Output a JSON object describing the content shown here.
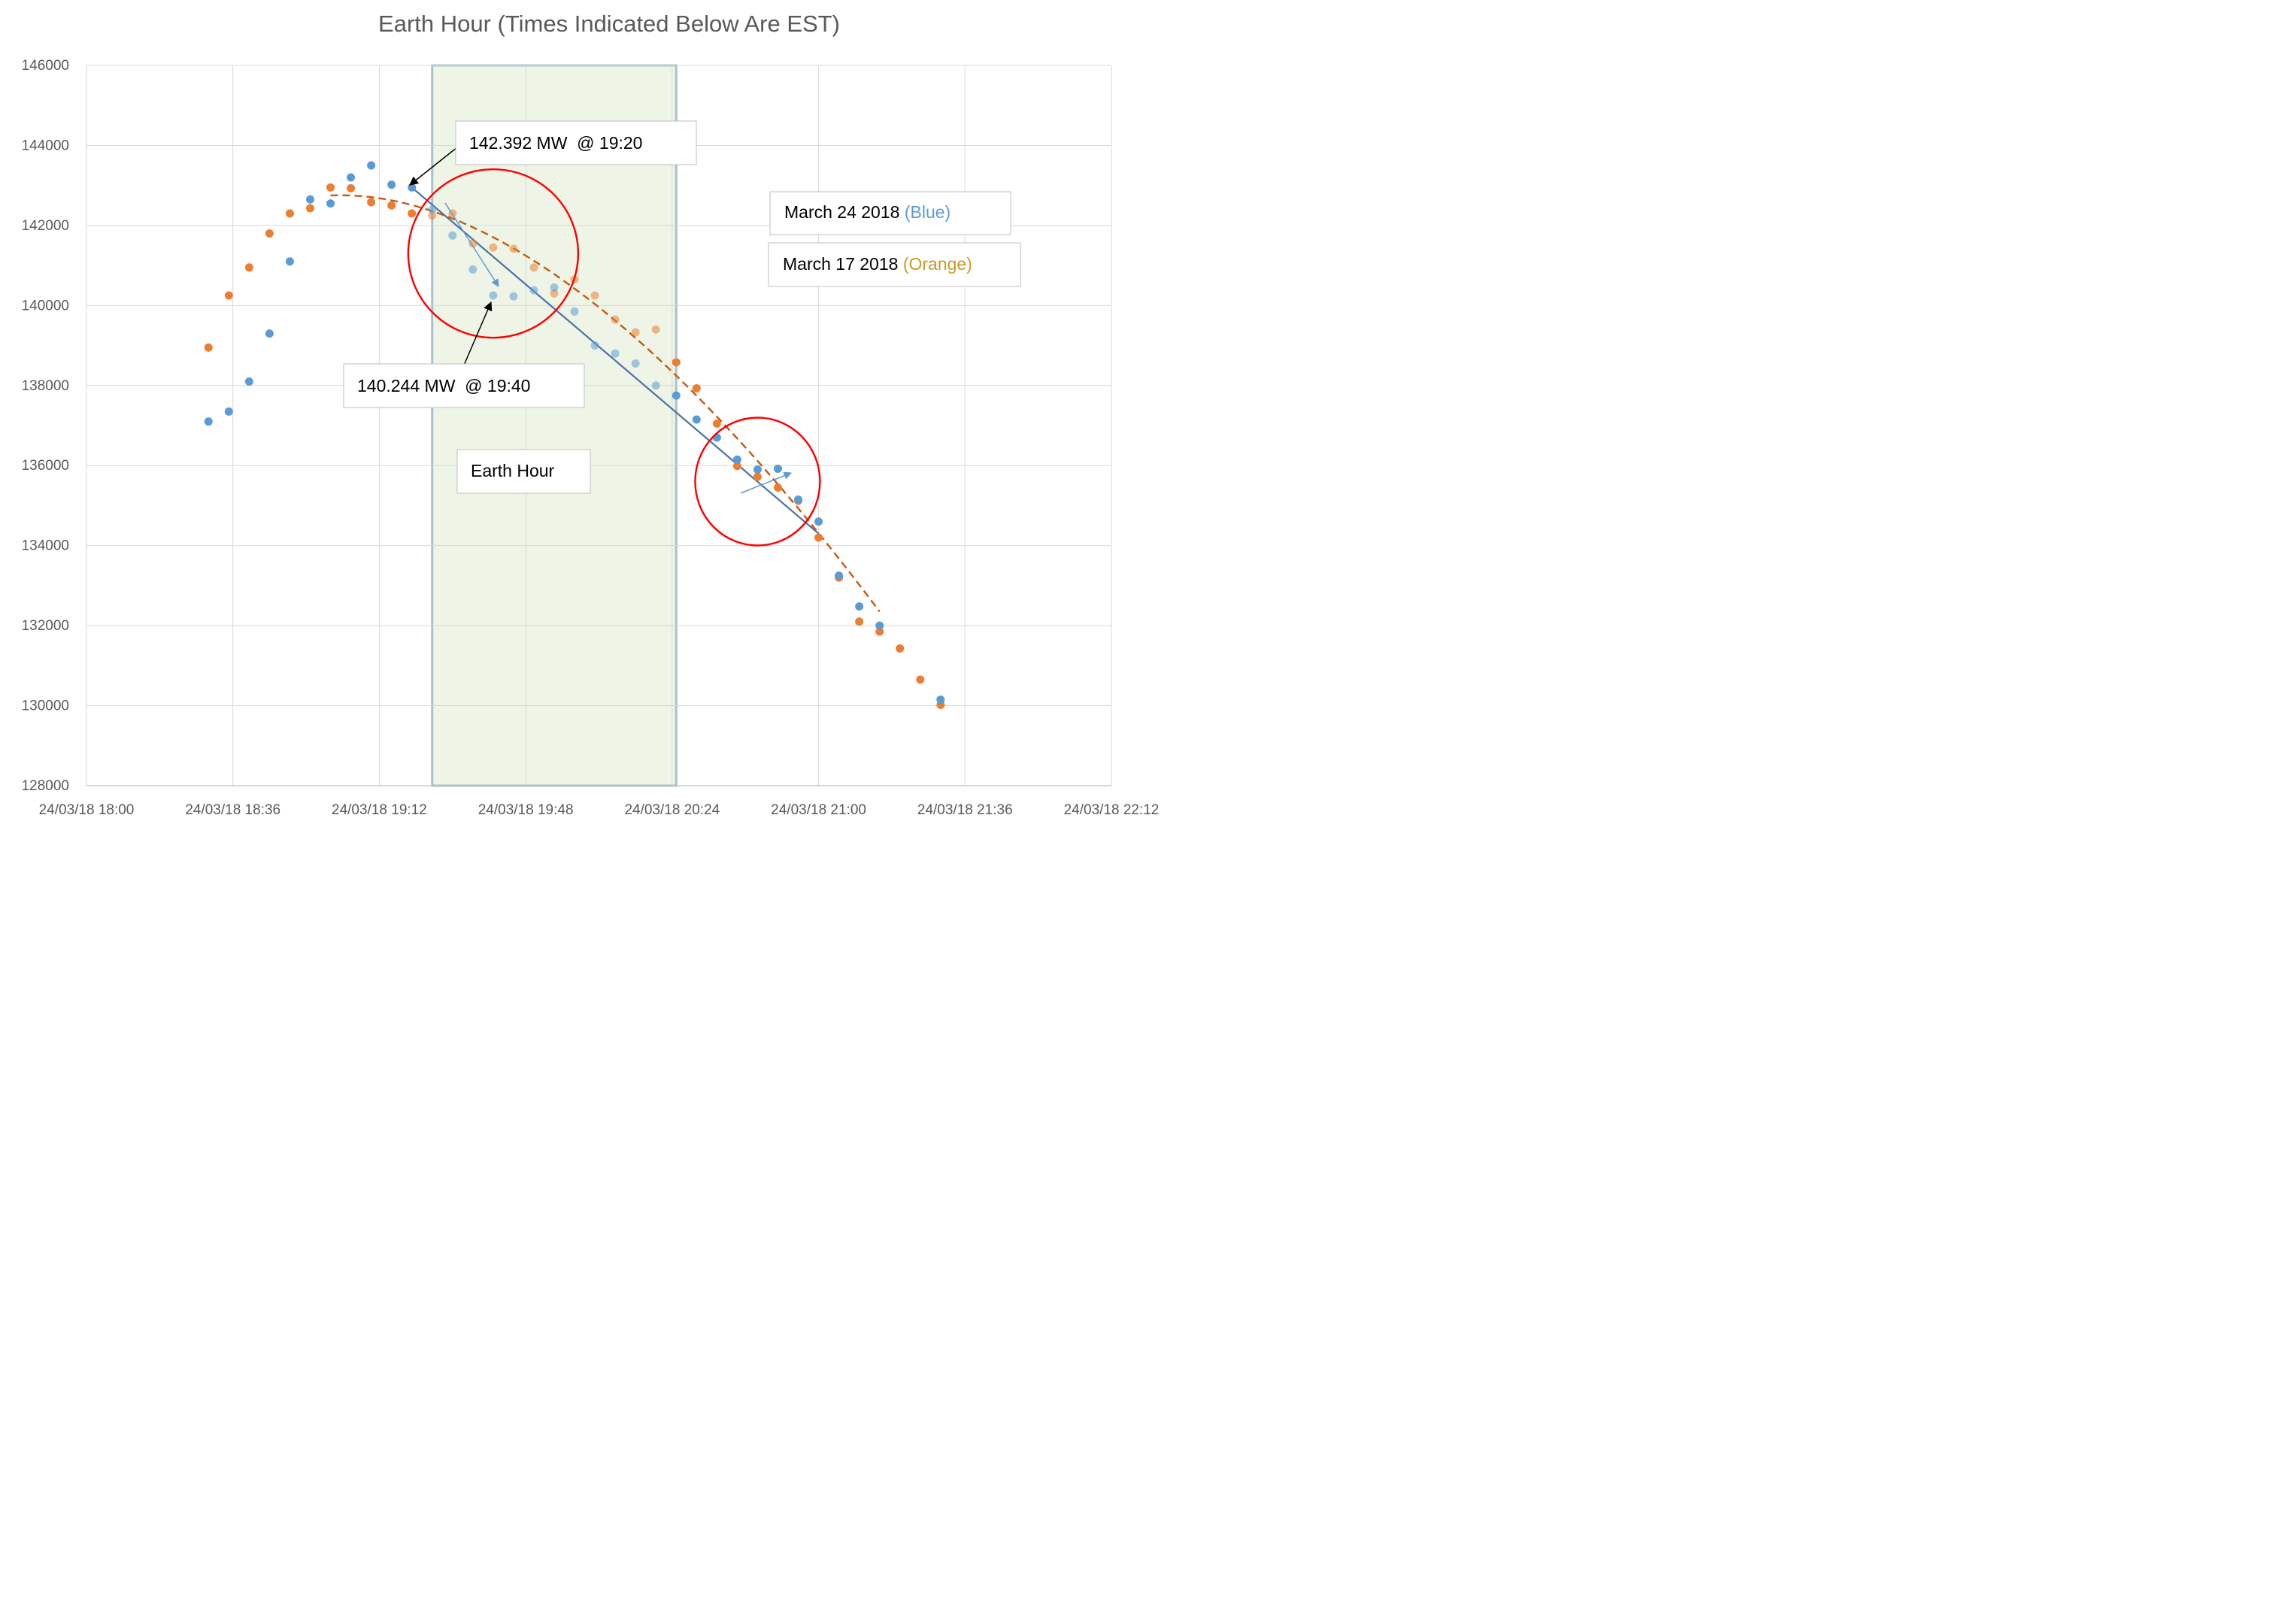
{
  "chart_data": {
    "type": "scatter",
    "title": "Earth Hour (Times Indicated Below Are EST)",
    "xlabel": "",
    "ylabel": "",
    "ylim": [
      128000,
      146000
    ],
    "xlim": [
      "24/03/18 18:00",
      "24/03/18 22:12"
    ],
    "yticks": [
      "128000",
      "130000",
      "132000",
      "134000",
      "136000",
      "138000",
      "140000",
      "142000",
      "144000",
      "146000"
    ],
    "xticks": [
      "24/03/18 18:00",
      "24/03/18 18:36",
      "24/03/18 19:12",
      "24/03/18 19:48",
      "24/03/18 20:24",
      "24/03/18 21:00",
      "24/03/18 21:36",
      "24/03/18 22:12"
    ],
    "grid": true,
    "shaded_region": {
      "start": "24/03/18 19:25",
      "end": "24/03/18 20:25",
      "color": "#eef5e6",
      "border": "#a9c1c9"
    },
    "series": [
      {
        "color": "#5b9bd5",
        "x": [
          "18:30",
          "18:35",
          "18:40",
          "18:45",
          "18:50",
          "18:55",
          "19:00",
          "19:05",
          "19:10",
          "19:15",
          "19:20",
          "19:25",
          "19:30",
          "19:35",
          "19:40",
          "19:45",
          "19:50",
          "19:55",
          "20:00",
          "20:05",
          "20:10",
          "20:15",
          "20:20",
          "20:25",
          "20:30",
          "20:35",
          "20:40",
          "20:45",
          "20:50",
          "20:55",
          "21:00",
          "21:05",
          "21:10",
          "21:15",
          "21:30"
        ],
        "y": [
          137100,
          137350,
          138100,
          139300,
          141100,
          142650,
          142550,
          143200,
          143500,
          143020,
          142950,
          142400,
          141750,
          140900,
          140250,
          140230,
          140380,
          140450,
          139850,
          139000,
          138800,
          138550,
          138000,
          137750,
          137150,
          136700,
          136150,
          135900,
          135920,
          135150,
          134600,
          133250,
          132480,
          132000,
          130150
        ],
        "faded_x": [
          "19:25",
          "19:30",
          "19:35",
          "19:40",
          "19:45",
          "19:50",
          "19:55",
          "20:00",
          "20:05",
          "20:10",
          "20:15",
          "20:20"
        ]
      },
      {
        "color": "#ed7d31",
        "x": [
          "18:30",
          "18:35",
          "18:40",
          "18:45",
          "18:50",
          "18:55",
          "19:00",
          "19:05",
          "19:10",
          "19:15",
          "19:20",
          "19:25",
          "19:30",
          "19:35",
          "19:40",
          "19:45",
          "19:50",
          "19:55",
          "20:00",
          "20:05",
          "20:10",
          "20:15",
          "20:20",
          "20:25",
          "20:30",
          "20:35",
          "20:40",
          "20:45",
          "20:50",
          "20:55",
          "21:00",
          "21:05",
          "21:10",
          "21:15",
          "21:20",
          "21:25",
          "21:30"
        ],
        "y": [
          138950,
          140250,
          140950,
          141800,
          142300,
          142430,
          142950,
          142930,
          142580,
          142500,
          142300,
          142250,
          142300,
          141550,
          141450,
          141420,
          140950,
          140300,
          140650,
          140250,
          139650,
          139330,
          139400,
          138580,
          137930,
          137050,
          135990,
          135720,
          135450,
          135120,
          134200,
          133200,
          132100,
          131850,
          131430,
          130650,
          130020
        ],
        "faded_x": [
          "19:25",
          "19:30",
          "19:35",
          "19:40",
          "19:45",
          "19:50",
          "19:55",
          "20:00",
          "20:05",
          "20:10",
          "20:15",
          "20:20"
        ]
      }
    ],
    "trendlines": [
      {
        "color": "#4a72a8",
        "style": "solid",
        "x": [
          "19:20",
          "21:00"
        ],
        "y": [
          142950,
          134300
        ]
      },
      {
        "color": "#c55a11",
        "style": "dashed",
        "x": [
          "19:00",
          "21:15"
        ],
        "y": [
          142750,
          132350
        ]
      }
    ],
    "annotations": {
      "callout_top": "142.392 MW  @ 19:20",
      "callout_bottom": "140.244 MW  @ 19:40",
      "region_label": "Earth Hour",
      "legend_blue_prefix": "March 24 2018 ",
      "legend_blue_suffix": "(Blue)",
      "legend_orange_prefix": "March 17 2018 ",
      "legend_orange_suffix": "(Orange)"
    },
    "circles": [
      {
        "center_x": "19:40",
        "center_y": 141300,
        "color": "#ff0000"
      },
      {
        "center_x": "20:45",
        "center_y": 135600,
        "color": "#ff0000"
      }
    ]
  }
}
